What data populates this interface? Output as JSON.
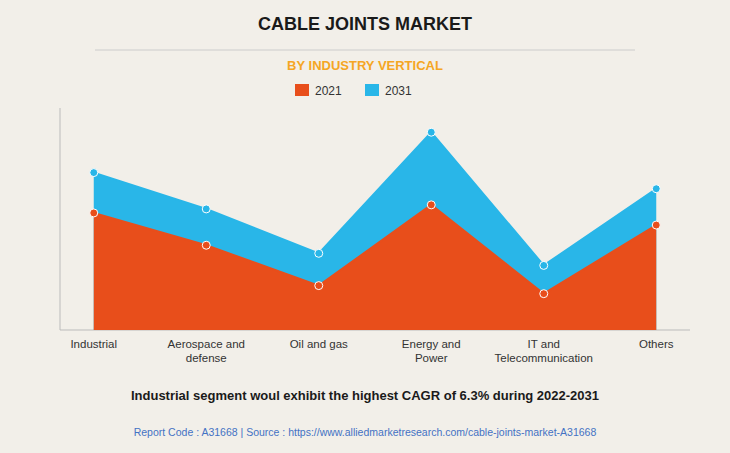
{
  "chart_data": {
    "type": "area",
    "title": "CABLE JOINTS MARKET",
    "subtitle": "BY INDUSTRY VERTICAL",
    "categories": [
      "Industrial",
      "Aerospace and\ndefense",
      "Oil and gas",
      "Energy and\nPower",
      "IT and\nTelecommunication",
      "Others"
    ],
    "series": [
      {
        "name": "2021",
        "color": "#e84e1b",
        "marker": "circle",
        "values": [
          0.58,
          0.42,
          0.22,
          0.62,
          0.18,
          0.52
        ]
      },
      {
        "name": "2031",
        "color": "#29b6e8",
        "marker": "circle",
        "values": [
          0.78,
          0.6,
          0.38,
          0.98,
          0.32,
          0.7
        ]
      }
    ],
    "ylim": [
      0,
      1.1
    ],
    "grid": false,
    "tick_labels": "x",
    "legend": "top",
    "annotations": [
      "Industrial segment woul exhibit the highest CAGR of 6.3% during 2022-2031",
      "Report Code : A31668  |  Source : https://www.alliedmarketresearch.com/cable-joints-market-A31668"
    ]
  }
}
